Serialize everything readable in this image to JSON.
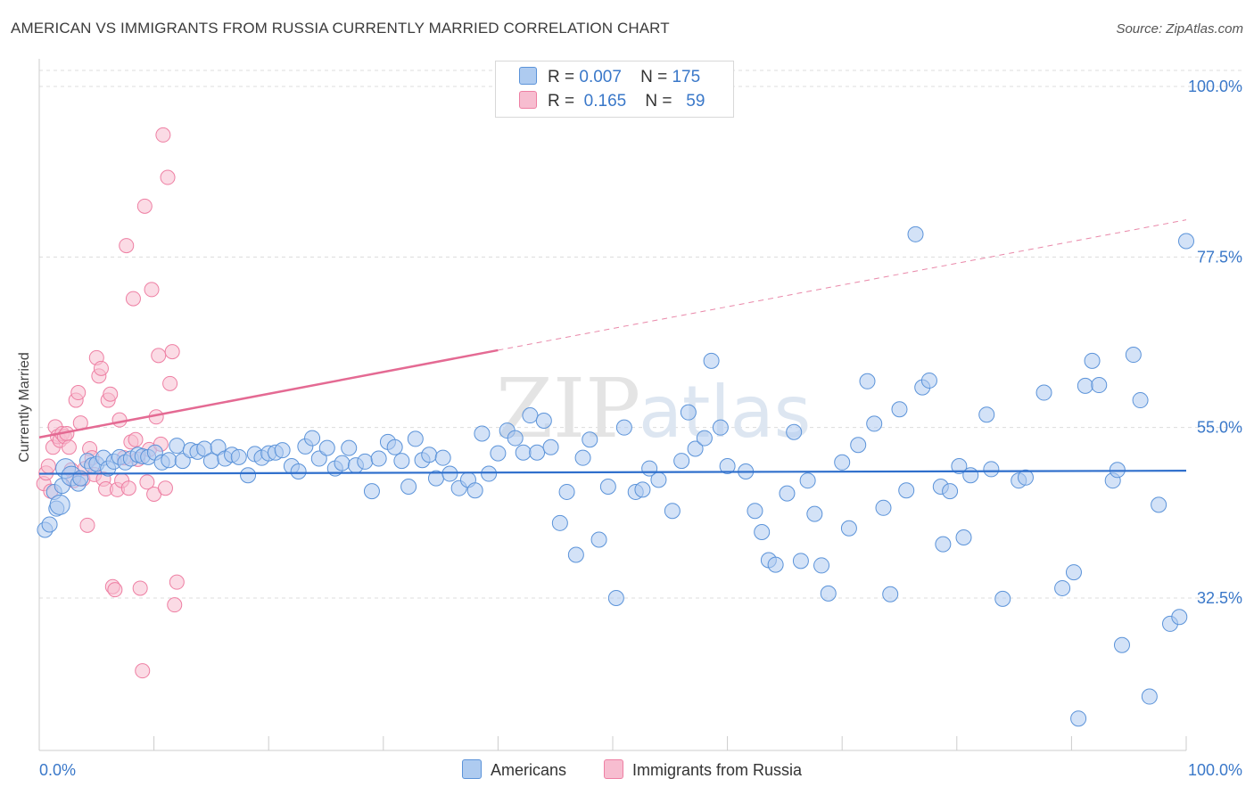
{
  "header": {
    "title": "AMERICAN VS IMMIGRANTS FROM RUSSIA CURRENTLY MARRIED CORRELATION CHART",
    "source": "Source: ZipAtlas.com"
  },
  "watermark": {
    "zip": "ZIP",
    "atlas": "atlas"
  },
  "colors": {
    "blue": "#5b93d9",
    "blue_fill": "#aecbf0",
    "blue_line": "#2f6fcc",
    "pink": "#ee7fa3",
    "pink_fill": "#f7bdd0",
    "pink_line": "#e46a93",
    "tick_text": "#3a78c9"
  },
  "legend": {
    "rows": [
      {
        "r_label": "R =",
        "r_value": "0.007",
        "n_label": "N =",
        "n_value": "175"
      },
      {
        "r_label": "R =",
        "r_value": "0.165",
        "n_label": "N =",
        "n_value": "59"
      }
    ]
  },
  "bottom_legend": {
    "americans": "Americans",
    "russia": "Immigrants from Russia"
  },
  "chart_data": {
    "type": "scatter",
    "title": "AMERICAN VS IMMIGRANTS FROM RUSSIA CURRENTLY MARRIED CORRELATION CHART",
    "xlabel": "",
    "ylabel": "Currently Married",
    "xlim": [
      0,
      100
    ],
    "ylim": [
      12,
      102
    ],
    "x_tick_labels": [
      "0.0%",
      "100.0%"
    ],
    "y_ticks": [
      {
        "value": 32.5,
        "label": "32.5%"
      },
      {
        "value": 55.0,
        "label": "55.0%"
      },
      {
        "value": 77.5,
        "label": "77.5%"
      },
      {
        "value": 100.0,
        "label": "100.0%"
      }
    ],
    "grid": "horizontal dashed",
    "legend_position": "top-center",
    "series": [
      {
        "name": "Americans",
        "stats": {
          "R": 0.007,
          "N": 175
        },
        "trend": {
          "x": [
            0,
            100
          ],
          "y": [
            48.9,
            49.3
          ]
        },
        "points": [
          [
            0.5,
            41.5
          ],
          [
            0.9,
            42.2
          ],
          [
            1.3,
            46.5
          ],
          [
            1.5,
            44.3
          ],
          [
            1.8,
            44.8
          ],
          [
            2.0,
            47.3
          ],
          [
            2.3,
            49.6
          ],
          [
            2.8,
            48.6
          ],
          [
            3.4,
            47.6
          ],
          [
            3.6,
            48.3
          ],
          [
            4.2,
            50.6
          ],
          [
            4.6,
            50.0
          ],
          [
            5.0,
            50.2
          ],
          [
            5.6,
            51.0
          ],
          [
            6.0,
            49.6
          ],
          [
            6.5,
            50.5
          ],
          [
            7.0,
            51.1
          ],
          [
            7.5,
            50.4
          ],
          [
            8.0,
            50.9
          ],
          [
            8.6,
            51.4
          ],
          [
            9.0,
            51.2
          ],
          [
            9.5,
            51.1
          ],
          [
            10.1,
            51.7
          ],
          [
            10.7,
            50.4
          ],
          [
            11.3,
            50.7
          ],
          [
            12.0,
            52.6
          ],
          [
            12.5,
            50.6
          ],
          [
            13.2,
            52.0
          ],
          [
            13.8,
            51.8
          ],
          [
            14.4,
            52.2
          ],
          [
            15.0,
            50.6
          ],
          [
            15.6,
            52.4
          ],
          [
            16.2,
            50.9
          ],
          [
            16.8,
            51.4
          ],
          [
            17.4,
            51.1
          ],
          [
            18.2,
            48.7
          ],
          [
            18.8,
            51.5
          ],
          [
            19.4,
            51.0
          ],
          [
            20.0,
            51.6
          ],
          [
            20.6,
            51.7
          ],
          [
            21.2,
            52.0
          ],
          [
            22.0,
            49.9
          ],
          [
            22.6,
            49.2
          ],
          [
            23.2,
            52.5
          ],
          [
            23.8,
            53.6
          ],
          [
            24.4,
            50.9
          ],
          [
            25.1,
            52.3
          ],
          [
            25.8,
            49.6
          ],
          [
            26.4,
            50.3
          ],
          [
            27.0,
            52.3
          ],
          [
            27.6,
            50.0
          ],
          [
            28.4,
            50.5
          ],
          [
            29.0,
            46.6
          ],
          [
            29.6,
            50.9
          ],
          [
            30.4,
            53.1
          ],
          [
            31.0,
            52.4
          ],
          [
            31.6,
            50.6
          ],
          [
            32.2,
            47.2
          ],
          [
            32.8,
            53.5
          ],
          [
            33.4,
            50.7
          ],
          [
            34.0,
            51.4
          ],
          [
            34.6,
            48.3
          ],
          [
            35.2,
            51.0
          ],
          [
            35.8,
            48.9
          ],
          [
            36.6,
            47.0
          ],
          [
            37.4,
            48.1
          ],
          [
            38.0,
            46.7
          ],
          [
            38.6,
            54.2
          ],
          [
            39.2,
            48.9
          ],
          [
            40.0,
            51.6
          ],
          [
            40.8,
            54.6
          ],
          [
            41.5,
            53.6
          ],
          [
            42.2,
            51.7
          ],
          [
            42.8,
            56.6
          ],
          [
            43.4,
            51.7
          ],
          [
            44.0,
            55.9
          ],
          [
            44.6,
            52.4
          ],
          [
            45.4,
            42.4
          ],
          [
            46.0,
            46.5
          ],
          [
            46.8,
            38.2
          ],
          [
            47.4,
            51.0
          ],
          [
            48.0,
            53.4
          ],
          [
            48.8,
            40.2
          ],
          [
            49.6,
            47.2
          ],
          [
            50.3,
            32.5
          ],
          [
            51.0,
            55.0
          ],
          [
            52.0,
            46.5
          ],
          [
            52.6,
            46.8
          ],
          [
            53.2,
            49.6
          ],
          [
            54.0,
            48.1
          ],
          [
            55.2,
            44.0
          ],
          [
            56.0,
            50.6
          ],
          [
            56.6,
            57.0
          ],
          [
            57.2,
            52.2
          ],
          [
            58.0,
            53.6
          ],
          [
            58.6,
            63.8
          ],
          [
            59.4,
            55.0
          ],
          [
            60.0,
            49.9
          ],
          [
            61.6,
            49.2
          ],
          [
            62.4,
            44.0
          ],
          [
            63.0,
            41.2
          ],
          [
            63.6,
            37.5
          ],
          [
            64.2,
            36.9
          ],
          [
            65.2,
            46.3
          ],
          [
            65.8,
            54.4
          ],
          [
            66.4,
            37.4
          ],
          [
            67.0,
            48.0
          ],
          [
            67.6,
            43.6
          ],
          [
            68.2,
            36.8
          ],
          [
            68.8,
            33.1
          ],
          [
            70.0,
            50.4
          ],
          [
            70.6,
            41.7
          ],
          [
            71.4,
            52.7
          ],
          [
            72.2,
            61.1
          ],
          [
            72.8,
            55.5
          ],
          [
            73.6,
            44.4
          ],
          [
            74.2,
            33.0
          ],
          [
            75.0,
            57.4
          ],
          [
            75.6,
            46.7
          ],
          [
            76.4,
            80.5
          ],
          [
            77.0,
            60.3
          ],
          [
            77.6,
            61.2
          ],
          [
            78.6,
            47.2
          ],
          [
            78.8,
            39.6
          ],
          [
            79.4,
            46.6
          ],
          [
            80.2,
            49.9
          ],
          [
            80.6,
            40.5
          ],
          [
            81.2,
            48.7
          ],
          [
            82.6,
            56.7
          ],
          [
            83.0,
            49.5
          ],
          [
            84.0,
            32.4
          ],
          [
            85.4,
            48.0
          ],
          [
            86.0,
            48.4
          ],
          [
            87.6,
            59.6
          ],
          [
            89.2,
            33.8
          ],
          [
            90.2,
            35.9
          ],
          [
            91.2,
            60.5
          ],
          [
            91.8,
            63.8
          ],
          [
            92.4,
            60.6
          ],
          [
            93.6,
            48.0
          ],
          [
            94.0,
            49.4
          ],
          [
            95.4,
            64.6
          ],
          [
            96.0,
            58.6
          ],
          [
            97.6,
            44.8
          ],
          [
            98.6,
            29.1
          ],
          [
            99.4,
            30.0
          ],
          [
            100.0,
            79.6
          ],
          [
            90.6,
            16.6
          ],
          [
            94.4,
            26.3
          ],
          [
            96.8,
            19.5
          ]
        ]
      },
      {
        "name": "Immigrants from Russia",
        "stats": {
          "R": 0.165,
          "N": 59
        },
        "trend": {
          "x": [
            0,
            40
          ],
          "y": [
            53.7,
            65.2
          ]
        },
        "trend_dashed": {
          "x": [
            40,
            100
          ],
          "y": [
            65.2,
            82.4
          ]
        },
        "points": [
          [
            0.4,
            47.6
          ],
          [
            0.6,
            49.0
          ],
          [
            0.8,
            49.9
          ],
          [
            1.0,
            46.6
          ],
          [
            1.2,
            52.4
          ],
          [
            1.4,
            55.1
          ],
          [
            1.6,
            53.8
          ],
          [
            1.8,
            53.3
          ],
          [
            2.0,
            54.2
          ],
          [
            2.2,
            53.8
          ],
          [
            2.4,
            54.2
          ],
          [
            2.6,
            52.4
          ],
          [
            2.8,
            49.4
          ],
          [
            3.0,
            48.0
          ],
          [
            3.2,
            58.6
          ],
          [
            3.4,
            59.6
          ],
          [
            3.6,
            55.6
          ],
          [
            3.8,
            48.2
          ],
          [
            4.0,
            49.6
          ],
          [
            4.2,
            42.1
          ],
          [
            4.4,
            52.2
          ],
          [
            4.6,
            51.0
          ],
          [
            4.8,
            48.8
          ],
          [
            5.0,
            64.2
          ],
          [
            5.2,
            61.8
          ],
          [
            5.4,
            62.8
          ],
          [
            5.6,
            48.2
          ],
          [
            5.8,
            46.9
          ],
          [
            6.0,
            58.6
          ],
          [
            6.2,
            59.4
          ],
          [
            6.4,
            34.0
          ],
          [
            6.6,
            33.6
          ],
          [
            6.8,
            46.8
          ],
          [
            7.0,
            56.0
          ],
          [
            7.2,
            48.0
          ],
          [
            7.4,
            51.0
          ],
          [
            7.6,
            79.0
          ],
          [
            7.8,
            47.0
          ],
          [
            8.0,
            53.1
          ],
          [
            8.2,
            72.0
          ],
          [
            8.4,
            53.4
          ],
          [
            8.6,
            50.8
          ],
          [
            8.8,
            33.8
          ],
          [
            9.0,
            22.9
          ],
          [
            9.2,
            84.2
          ],
          [
            9.4,
            47.8
          ],
          [
            9.6,
            52.1
          ],
          [
            9.8,
            73.2
          ],
          [
            10.0,
            46.2
          ],
          [
            10.2,
            56.4
          ],
          [
            10.4,
            64.5
          ],
          [
            10.6,
            52.8
          ],
          [
            10.8,
            93.6
          ],
          [
            11.0,
            47.0
          ],
          [
            11.2,
            88.0
          ],
          [
            11.4,
            60.8
          ],
          [
            11.6,
            65.0
          ],
          [
            11.8,
            31.6
          ],
          [
            12.0,
            34.6
          ]
        ]
      }
    ]
  }
}
